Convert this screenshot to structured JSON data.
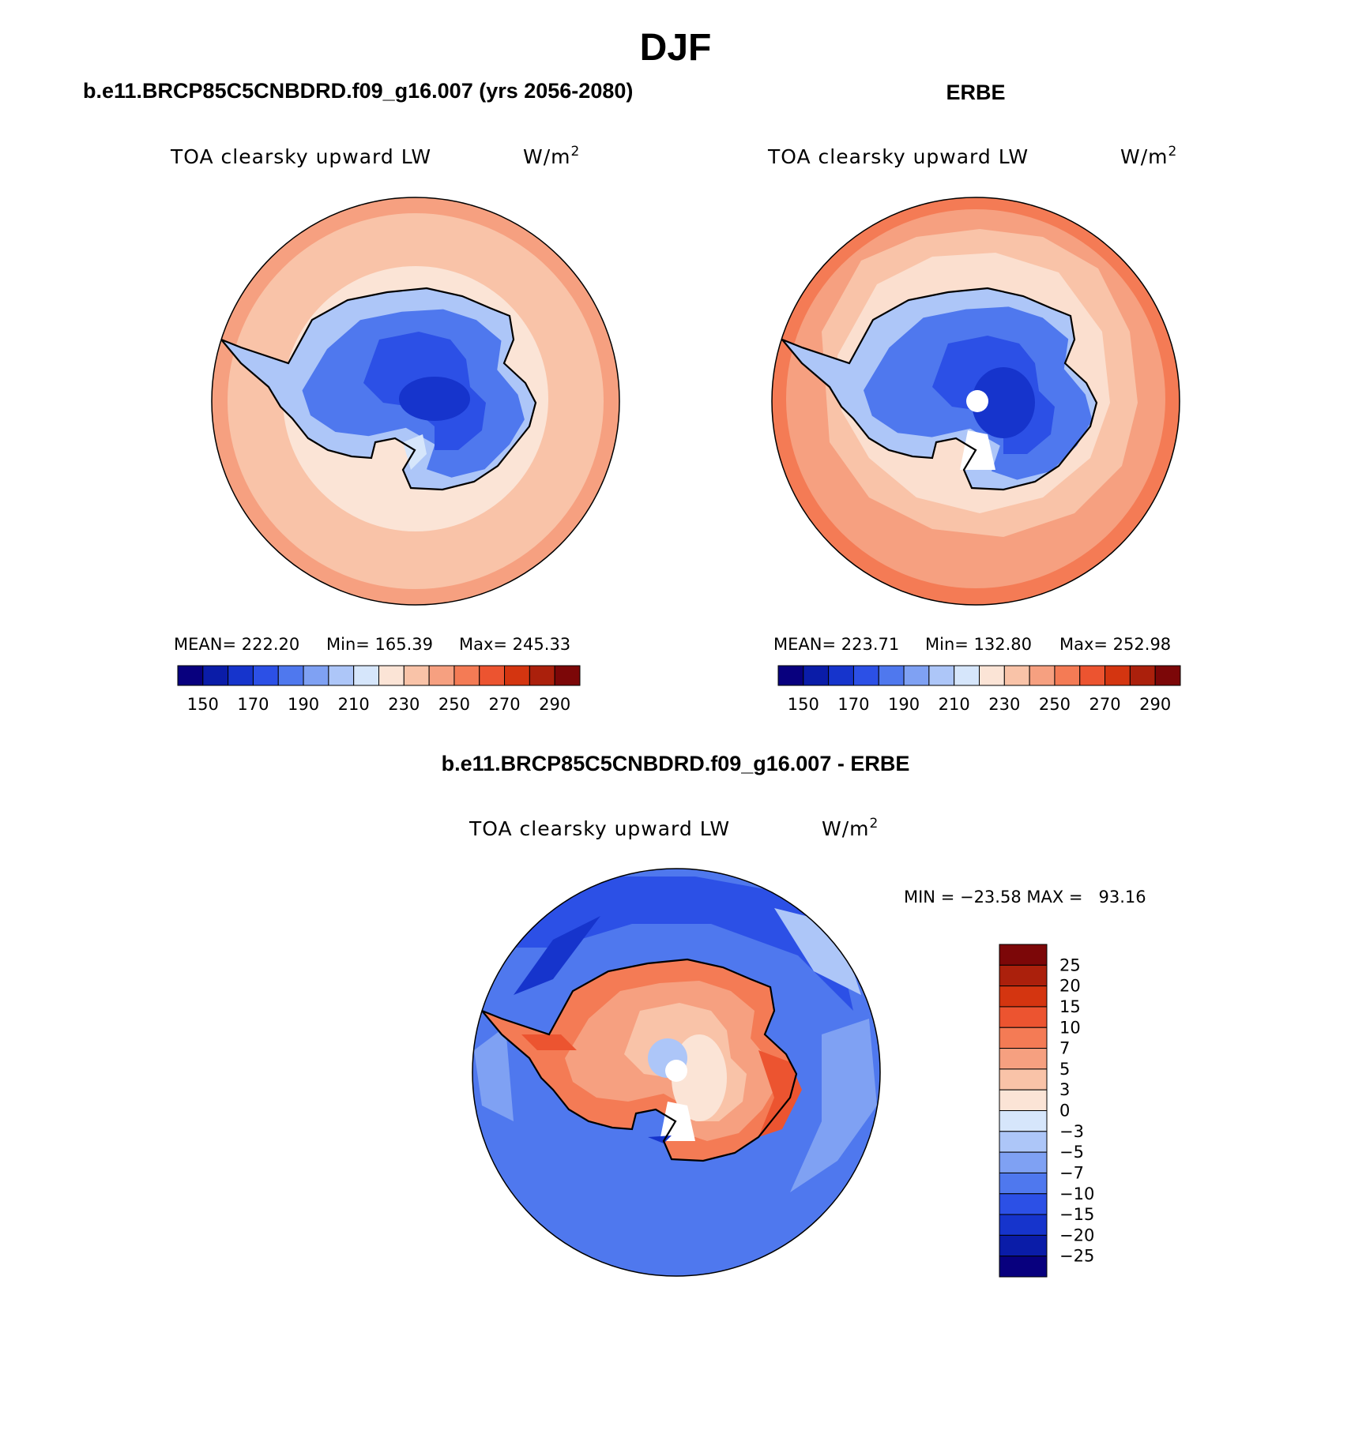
{
  "figure": {
    "title": "DJF"
  },
  "panels": [
    {
      "heading": "b.e11.BRCP85C5CNBDRD.f09_g16.007 (yrs 2056-2080)",
      "variable": "TOA clearsky upward LW",
      "units": "W/m",
      "units_sup": "2",
      "stats": {
        "mean": "MEAN= 222.20",
        "min": "Min= 165.39",
        "max": "Max= 245.33"
      },
      "has_pole_hole": false
    },
    {
      "heading": "ERBE",
      "variable": "TOA clearsky upward LW",
      "units": "W/m",
      "units_sup": "2",
      "stats": {
        "mean": "MEAN= 223.71",
        "min": "Min= 132.80",
        "max": "Max= 252.98"
      },
      "has_pole_hole": true
    },
    {
      "heading": "b.e11.BRCP85C5CNBDRD.f09_g16.007 - ERBE",
      "variable": "TOA clearsky upward LW",
      "units": "W/m",
      "units_sup": "2",
      "stats": {
        "minmax": "MIN = −23.58 MAX =   93.16"
      },
      "has_pole_hole": true
    }
  ],
  "colorbar_abs": {
    "orientation": "horizontal",
    "tick_labels": [
      "150",
      "170",
      "190",
      "210",
      "230",
      "250",
      "270",
      "290"
    ],
    "colors": [
      "#08007e",
      "#0a1ca8",
      "#1634cc",
      "#2c50e6",
      "#4f78ee",
      "#7fa1f3",
      "#adc6f8",
      "#d6e6fb",
      "#fbe4d6",
      "#f9c3a8",
      "#f6a080",
      "#f47b55",
      "#ec5430",
      "#d43510",
      "#ab200c",
      "#7c0708"
    ]
  },
  "colorbar_diff": {
    "orientation": "vertical",
    "tick_labels": [
      "25",
      "20",
      "15",
      "10",
      "7",
      "5",
      "3",
      "0",
      "−3",
      "−5",
      "−7",
      "−10",
      "−15",
      "−20",
      "−25"
    ],
    "colors": [
      "#7c0708",
      "#ab200c",
      "#d43510",
      "#ec5430",
      "#f47b55",
      "#f6a080",
      "#f9c3a8",
      "#fbe4d6",
      "#d6e6fb",
      "#adc6f8",
      "#7fa1f3",
      "#4f78ee",
      "#2c50e6",
      "#1634cc",
      "#0a1ca8",
      "#08007e"
    ]
  }
}
